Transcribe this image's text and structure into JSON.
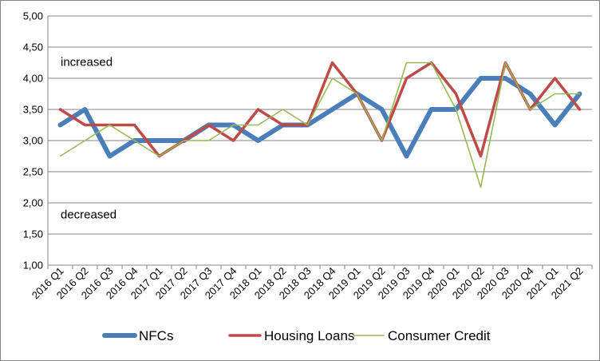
{
  "chart_data": {
    "type": "line",
    "title": "",
    "xlabel": "",
    "ylabel": "",
    "ylim": [
      1.0,
      5.0
    ],
    "y_ticks": [
      "1,00",
      "1,50",
      "2,00",
      "2,50",
      "3,00",
      "3,50",
      "4,00",
      "4,50",
      "5,00"
    ],
    "grid": "horizontal",
    "legend_position": "bottom",
    "categories": [
      "2016 Q1",
      "2016 Q2",
      "2016 Q3",
      "2016 Q4",
      "2017 Q1",
      "2017 Q2",
      "2017 Q3",
      "2017 Q4",
      "2018 Q1",
      "2018 Q2",
      "2018 Q3",
      "2018 Q4",
      "2019 Q1",
      "2019 Q2",
      "2019 Q3",
      "2019 Q4",
      "2020 Q1",
      "2020 Q2",
      "2020 Q3",
      "2020 Q4",
      "2021 Q1",
      "2021 Q2"
    ],
    "series": [
      {
        "name": "NFCs",
        "color": "#4a7ebb",
        "values": [
          3.25,
          3.5,
          2.75,
          3.0,
          3.0,
          3.0,
          3.25,
          3.25,
          3.0,
          3.25,
          3.25,
          3.5,
          3.75,
          3.5,
          2.75,
          3.5,
          3.5,
          4.0,
          4.0,
          3.75,
          3.25,
          3.75
        ]
      },
      {
        "name": "Housing Loans",
        "color": "#be4b48",
        "values": [
          3.5,
          3.25,
          3.25,
          3.25,
          2.75,
          3.0,
          3.25,
          3.0,
          3.5,
          3.25,
          3.25,
          4.25,
          3.75,
          3.0,
          4.0,
          4.25,
          3.75,
          2.75,
          4.25,
          3.5,
          4.0,
          3.5
        ]
      },
      {
        "name": "Consumer Credit",
        "color": "#98b954",
        "values": [
          2.75,
          3.0,
          3.25,
          3.0,
          2.75,
          3.0,
          3.0,
          3.25,
          3.25,
          3.5,
          3.25,
          4.0,
          3.75,
          3.0,
          4.25,
          4.25,
          3.5,
          2.25,
          4.25,
          3.5,
          3.75,
          3.75
        ]
      }
    ],
    "annotations": [
      {
        "text": "increased",
        "y": 4.2
      },
      {
        "text": "decreased",
        "y": 1.75
      }
    ]
  }
}
